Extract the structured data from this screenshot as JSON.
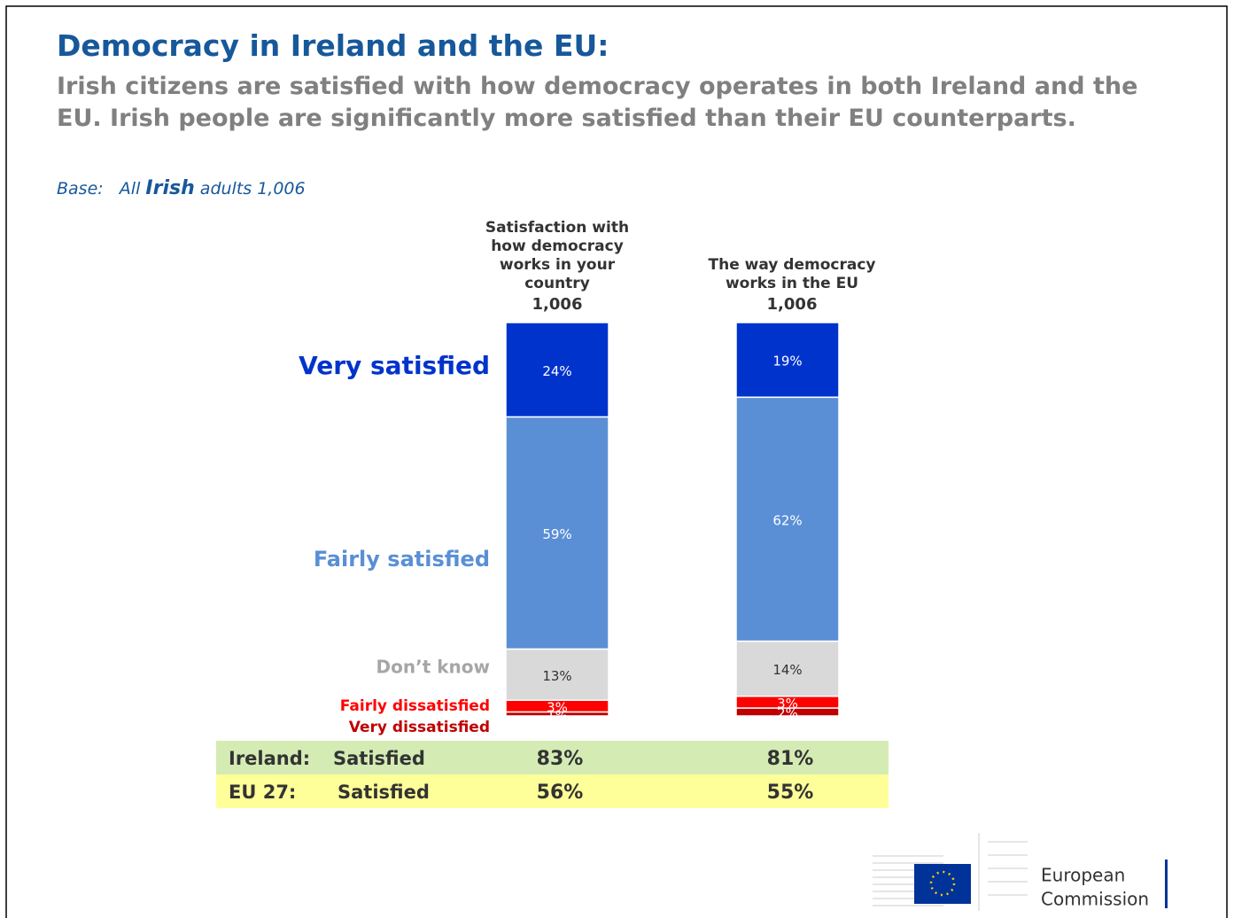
{
  "chart_data": {
    "type": "bar",
    "stacked": true,
    "title": "Democracy in Ireland and the EU:",
    "subtitle": "Irish citizens are satisfied with how democracy operates in both Ireland and the EU. Irish people are significantly more satisfied than their EU counterparts.",
    "base": {
      "label": "Base:",
      "before": "All",
      "emphasis": "Irish",
      "after": "adults 1,006"
    },
    "categories": [
      "Satisfaction with how democracy works in your country",
      "The way democracy works in the EU"
    ],
    "category_bases": [
      "1,006",
      "1,006"
    ],
    "series": [
      {
        "name": "Very satisfied",
        "color": "#0033cc",
        "label_color": "#0033cc",
        "values": [
          24,
          19
        ],
        "value_labels": [
          "24%",
          "19%"
        ]
      },
      {
        "name": "Fairly satisfied",
        "color": "#5a8fd6",
        "label_color": "#5a8fd6",
        "values": [
          59,
          62
        ],
        "value_labels": [
          "59%",
          "62%"
        ]
      },
      {
        "name": "Don’t know",
        "color": "#d9d9d9",
        "label_color": "#a6a6a6",
        "values": [
          13,
          14
        ],
        "value_labels": [
          "13%",
          "14%"
        ]
      },
      {
        "name": "Fairly dissatisfied",
        "color": "#ff0000",
        "label_color": "#ff0000",
        "values": [
          3,
          3
        ],
        "value_labels": [
          "3%",
          "3%"
        ]
      },
      {
        "name": "Very dissatisfied",
        "color": "#c00000",
        "label_color": "#c00000",
        "values": [
          1,
          2
        ],
        "value_labels": [
          "1%",
          "2%"
        ]
      }
    ]
  },
  "summary": {
    "rows": [
      {
        "region": "Ireland:",
        "label": "Satisfied",
        "values": [
          "83%",
          "81%"
        ],
        "color": "#d5ebb4"
      },
      {
        "region": "EU 27:",
        "label": "Satisfied",
        "values": [
          "56%",
          "55%"
        ],
        "color": "#ffff99"
      }
    ]
  },
  "logo": {
    "line1": "European",
    "line2": "Commission"
  }
}
